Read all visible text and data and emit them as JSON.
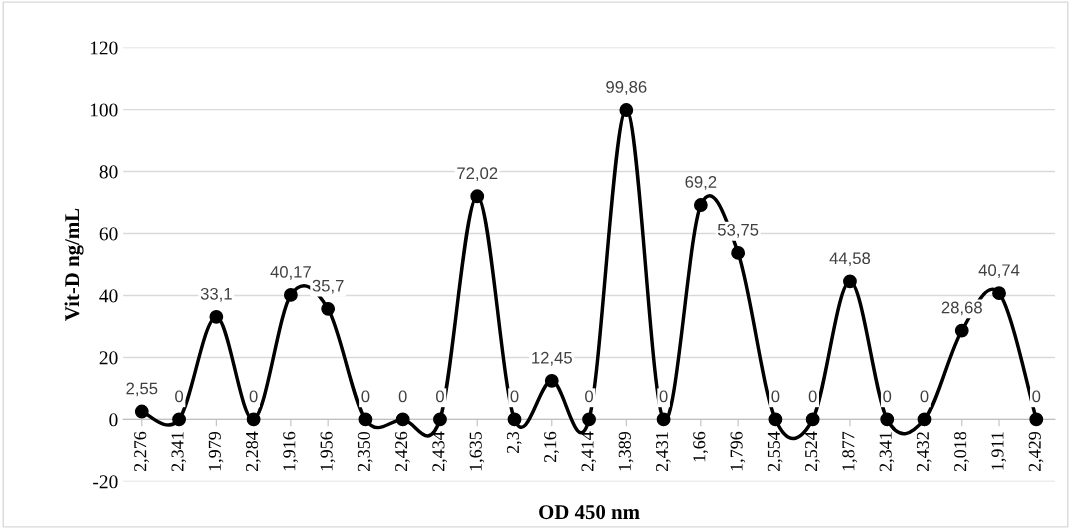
{
  "chart_data": {
    "type": "line",
    "xlabel": "OD 450 nm",
    "ylabel": "Vit-D ng/mL",
    "categories": [
      "2,276",
      "2,341",
      "1,979",
      "2,284",
      "1,916",
      "1,956",
      "2,350",
      "2,426",
      "2,434",
      "1,635",
      "2,3",
      "2,16",
      "2,414",
      "1,389",
      "2,431",
      "1,66",
      "1,796",
      "2,554",
      "2,524",
      "1,877",
      "2,341",
      "2,432",
      "2,018",
      "1,911",
      "2,429"
    ],
    "series": [
      {
        "color": "#000000",
        "values": [
          2.55,
          0,
          33.1,
          0,
          40.17,
          35.7,
          0,
          0,
          0,
          72.02,
          0,
          12.45,
          0,
          99.86,
          0,
          69.2,
          53.75,
          0,
          0,
          44.58,
          0,
          0,
          28.68,
          40.74,
          0
        ],
        "value_labels": [
          "2,55",
          "0",
          "33,1",
          "0",
          "40,17",
          "35,7",
          "0",
          "0",
          "0",
          "72,02",
          "0",
          "12,45",
          "0",
          "99,86",
          "0",
          "69,2",
          "53,75",
          "0",
          "0",
          "44,58",
          "0",
          "0",
          "28,68",
          "40,74",
          "0"
        ]
      }
    ],
    "ylim": [
      -20,
      120
    ],
    "yticks": [
      -20,
      0,
      20,
      40,
      60,
      80,
      100,
      120
    ],
    "grid": "y",
    "marker": "circle",
    "line_style": "solid",
    "legend": false
  }
}
